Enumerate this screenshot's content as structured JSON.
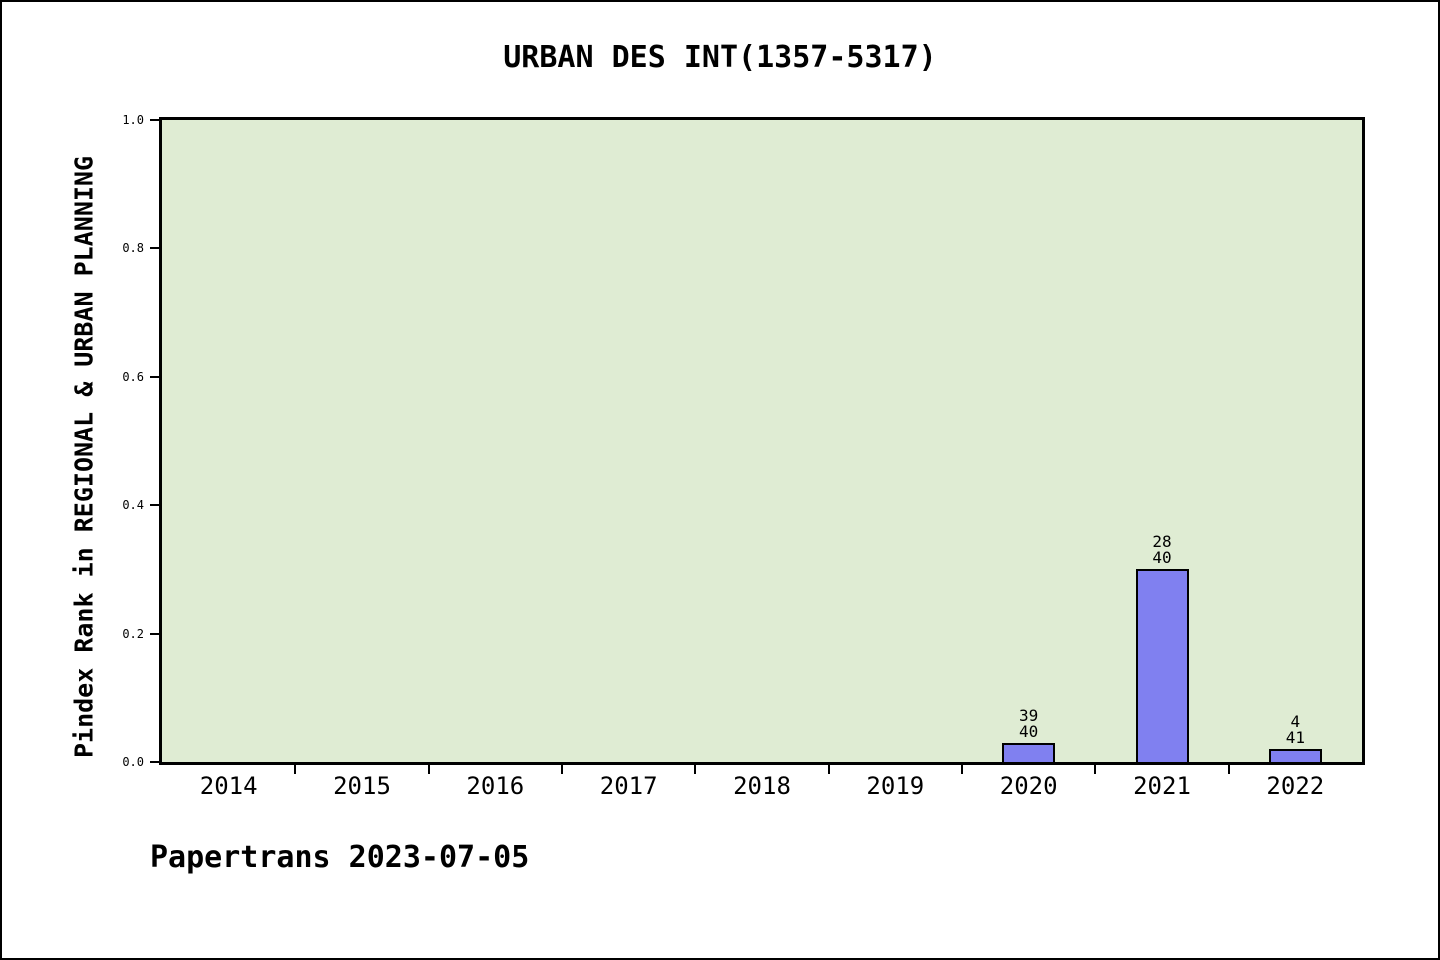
{
  "title": "URBAN DES INT(1357-5317)",
  "footer": "Papertrans 2023-07-05",
  "colors": {
    "figure_background": "#ffffff",
    "plot_background": "#dfecd3",
    "bar_fill": "#8080f0",
    "bar_edge": "#000000",
    "axis": "#000000"
  },
  "chart_data": {
    "type": "bar",
    "title": "URBAN DES INT(1357-5317)",
    "xlabel": "",
    "ylabel": "Pindex Rank in REGIONAL & URBAN PLANNING",
    "categories": [
      "2014",
      "2015",
      "2016",
      "2017",
      "2018",
      "2019",
      "2020",
      "2021",
      "2022"
    ],
    "values": [
      0,
      0,
      0,
      0,
      0,
      0,
      0.03,
      0.3,
      0.02
    ],
    "bar_labels": [
      null,
      null,
      null,
      null,
      null,
      null,
      [
        "39",
        "40"
      ],
      [
        "28",
        "40"
      ],
      [
        "4",
        "41"
      ]
    ],
    "ylim": [
      0,
      1
    ],
    "yticks": [
      "0.0",
      "0.2",
      "0.4",
      "0.6",
      "0.8",
      "1.0"
    ],
    "grid": false,
    "legend": null
  }
}
